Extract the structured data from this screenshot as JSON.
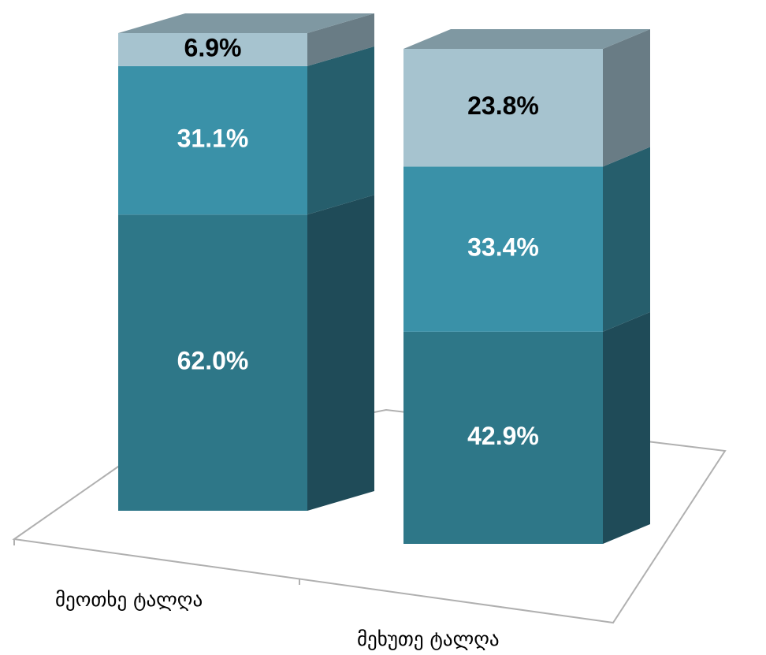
{
  "chart_data": {
    "type": "stacked_bar_3d",
    "categories": [
      "მეოთხე ტალღა",
      "მეხუთე ტალღა"
    ],
    "series": [
      {
        "color": "#2e7788",
        "side_color": "#1f4b58",
        "label_color": "#ffffff",
        "values": [
          62.0,
          42.9
        ],
        "value_labels": [
          "62.0%",
          "42.9%"
        ]
      },
      {
        "color": "#3a91a8",
        "side_color": "#265e6c",
        "label_color": "#ffffff",
        "values": [
          31.1,
          33.4
        ],
        "value_labels": [
          "31.1%",
          "33.4%"
        ]
      },
      {
        "color": "#a6c3cf",
        "side_color": "#697c85",
        "label_color": "#000000",
        "values": [
          6.9,
          23.8
        ],
        "value_labels": [
          "6.9%",
          "23.8%"
        ]
      }
    ],
    "top_color": "#7f98a2"
  }
}
